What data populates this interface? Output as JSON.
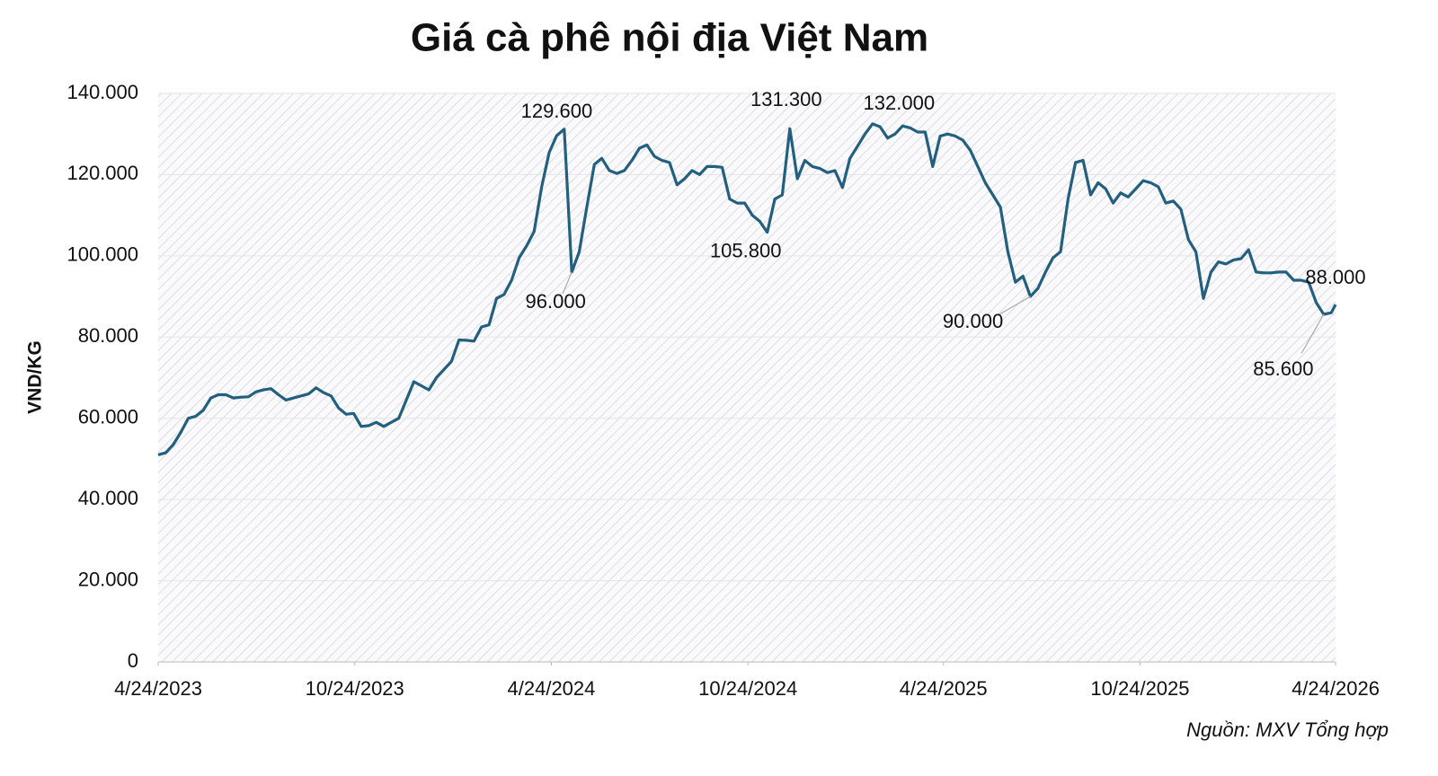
{
  "chart_data": {
    "type": "line",
    "title": "Giá cà phê nội địa Việt Nam",
    "y_label": "VND/KG",
    "source": "Nguồn: MXV Tổng hợp",
    "grid": true,
    "xlim": [
      "2023-04-24",
      "2026-04-24"
    ],
    "xticks": [
      {
        "value": "2023-04-24",
        "label": "4/24/2023"
      },
      {
        "value": "2023-10-24",
        "label": "10/24/2023"
      },
      {
        "value": "2024-04-24",
        "label": "4/24/2024"
      },
      {
        "value": "2024-10-24",
        "label": "10/24/2024"
      },
      {
        "value": "2025-04-24",
        "label": "4/24/2025"
      },
      {
        "value": "2025-10-24",
        "label": "10/24/2025"
      },
      {
        "value": "2026-04-24",
        "label": "4/24/2026"
      }
    ],
    "ylim": [
      0,
      140000
    ],
    "yticks": [
      0,
      {
        "value": 20000,
        "label": "20.000"
      },
      {
        "value": 40000,
        "label": "40.000"
      },
      {
        "value": 60000,
        "label": "60.000"
      },
      {
        "value": 80000,
        "label": "80.000"
      },
      {
        "value": 100000,
        "label": "100.000"
      },
      {
        "value": 120000,
        "label": "120.000"
      },
      {
        "value": 140000,
        "label": "140.000"
      }
    ],
    "x": [
      "2023-04-24",
      "2023-05-01",
      "2023-05-08",
      "2023-05-15",
      "2023-05-22",
      "2023-05-29",
      "2023-06-05",
      "2023-06-12",
      "2023-06-19",
      "2023-06-26",
      "2023-07-03",
      "2023-07-10",
      "2023-07-17",
      "2023-07-24",
      "2023-07-31",
      "2023-08-07",
      "2023-08-14",
      "2023-08-21",
      "2023-08-28",
      "2023-09-04",
      "2023-09-11",
      "2023-09-18",
      "2023-09-25",
      "2023-10-02",
      "2023-10-09",
      "2023-10-16",
      "2023-10-23",
      "2023-10-30",
      "2023-11-06",
      "2023-11-13",
      "2023-11-20",
      "2023-11-27",
      "2023-12-04",
      "2023-12-11",
      "2023-12-18",
      "2023-12-25",
      "2024-01-01",
      "2024-01-08",
      "2024-01-15",
      "2024-01-22",
      "2024-01-29",
      "2024-02-05",
      "2024-02-12",
      "2024-02-19",
      "2024-02-26",
      "2024-03-04",
      "2024-03-11",
      "2024-03-18",
      "2024-03-25",
      "2024-04-01",
      "2024-04-08",
      "2024-04-15",
      "2024-04-22",
      "2024-04-29",
      "2024-05-06",
      "2024-05-13",
      "2024-05-20",
      "2024-05-27",
      "2024-06-03",
      "2024-06-10",
      "2024-06-17",
      "2024-06-24",
      "2024-07-01",
      "2024-07-08",
      "2024-07-15",
      "2024-07-22",
      "2024-07-29",
      "2024-08-05",
      "2024-08-12",
      "2024-08-19",
      "2024-08-26",
      "2024-09-02",
      "2024-09-09",
      "2024-09-16",
      "2024-09-23",
      "2024-09-30",
      "2024-10-07",
      "2024-10-14",
      "2024-10-21",
      "2024-10-28",
      "2024-11-04",
      "2024-11-11",
      "2024-11-18",
      "2024-11-25",
      "2024-12-02",
      "2024-12-09",
      "2024-12-16",
      "2024-12-23",
      "2024-12-30",
      "2025-01-06",
      "2025-01-13",
      "2025-01-20",
      "2025-01-27",
      "2025-02-03",
      "2025-02-10",
      "2025-02-17",
      "2025-02-24",
      "2025-03-03",
      "2025-03-10",
      "2025-03-17",
      "2025-03-24",
      "2025-03-31",
      "2025-04-07",
      "2025-04-14",
      "2025-04-21",
      "2025-04-28",
      "2025-05-05",
      "2025-05-12",
      "2025-05-19",
      "2025-05-26",
      "2025-06-02",
      "2025-06-09",
      "2025-06-16",
      "2025-06-23",
      "2025-06-30",
      "2025-07-07",
      "2025-07-14",
      "2025-07-21",
      "2025-07-28",
      "2025-08-04",
      "2025-08-11",
      "2025-08-18",
      "2025-08-25",
      "2025-09-01",
      "2025-09-08",
      "2025-09-15",
      "2025-09-22",
      "2025-09-29",
      "2025-10-06",
      "2025-10-13",
      "2025-10-20",
      "2025-10-27",
      "2025-11-03",
      "2025-11-10",
      "2025-11-17",
      "2025-11-24",
      "2025-12-01",
      "2025-12-08",
      "2025-12-15",
      "2025-12-22",
      "2025-12-29",
      "2026-01-05",
      "2026-01-12",
      "2026-01-19",
      "2026-01-26",
      "2026-02-02",
      "2026-02-09",
      "2026-02-16",
      "2026-02-23",
      "2026-03-02",
      "2026-03-09",
      "2026-03-16",
      "2026-03-23",
      "2026-03-30",
      "2026-04-06",
      "2026-04-13",
      "2026-04-20",
      "2026-04-24"
    ],
    "series": [
      {
        "name": "VND/KG",
        "color": "#23607f",
        "values": [
          51000,
          51500,
          53500,
          56500,
          60000,
          60500,
          62000,
          65000,
          65800,
          65800,
          65000,
          65200,
          65300,
          66500,
          67000,
          67300,
          65800,
          64500,
          65000,
          65500,
          66000,
          67500,
          66300,
          65500,
          62500,
          61000,
          61200,
          58000,
          58200,
          59000,
          58000,
          59000,
          60000,
          64500,
          69000,
          68000,
          67000,
          70000,
          72000,
          74000,
          79300,
          79200,
          79000,
          82500,
          83000,
          89500,
          90500,
          94000,
          99500,
          102500,
          106000,
          117000,
          125500,
          129600,
          131200,
          96000,
          101000,
          112000,
          122500,
          124000,
          121000,
          120300,
          121000,
          123500,
          126500,
          127300,
          124500,
          123500,
          123000,
          117500,
          119000,
          121000,
          120000,
          122000,
          122000,
          121800,
          114000,
          113000,
          113000,
          110000,
          108500,
          105800,
          114000,
          115000,
          131300,
          119000,
          123500,
          122000,
          121500,
          120500,
          121000,
          116800,
          124000,
          127000,
          130000,
          132500,
          131800,
          129000,
          130000,
          132000,
          131500,
          130500,
          130500,
          122000,
          129500,
          130000,
          129500,
          128500,
          126000,
          122000,
          118000,
          115000,
          112000,
          101000,
          93500,
          95000,
          90000,
          92000,
          96000,
          99500,
          101000,
          114000,
          123000,
          123500,
          115000,
          118000,
          116500,
          113000,
          115500,
          114500,
          116500,
          118500,
          118000,
          117000,
          113000,
          113500,
          111500,
          104000,
          101000,
          89500,
          96000,
          98500,
          98000,
          99000,
          99300,
          101500,
          96000,
          95800,
          95800,
          96000,
          96000,
          94000,
          94000,
          93500,
          88500,
          85600,
          86000,
          88000
        ]
      }
    ],
    "annotations": [
      {
        "label": "129.600",
        "x": "2024-04-29"
      },
      {
        "label": "96.000",
        "x": "2024-05-13"
      },
      {
        "label": "105.800",
        "x": "2024-11-11"
      },
      {
        "label": "131.300",
        "x": "2024-12-02"
      },
      {
        "label": "132.000",
        "x": "2025-03-17"
      },
      {
        "label": "90.000",
        "x": "2025-07-14"
      },
      {
        "label": "88.000",
        "x": "2026-04-24"
      },
      {
        "label": "85.600",
        "x": "2026-04-13"
      }
    ]
  }
}
